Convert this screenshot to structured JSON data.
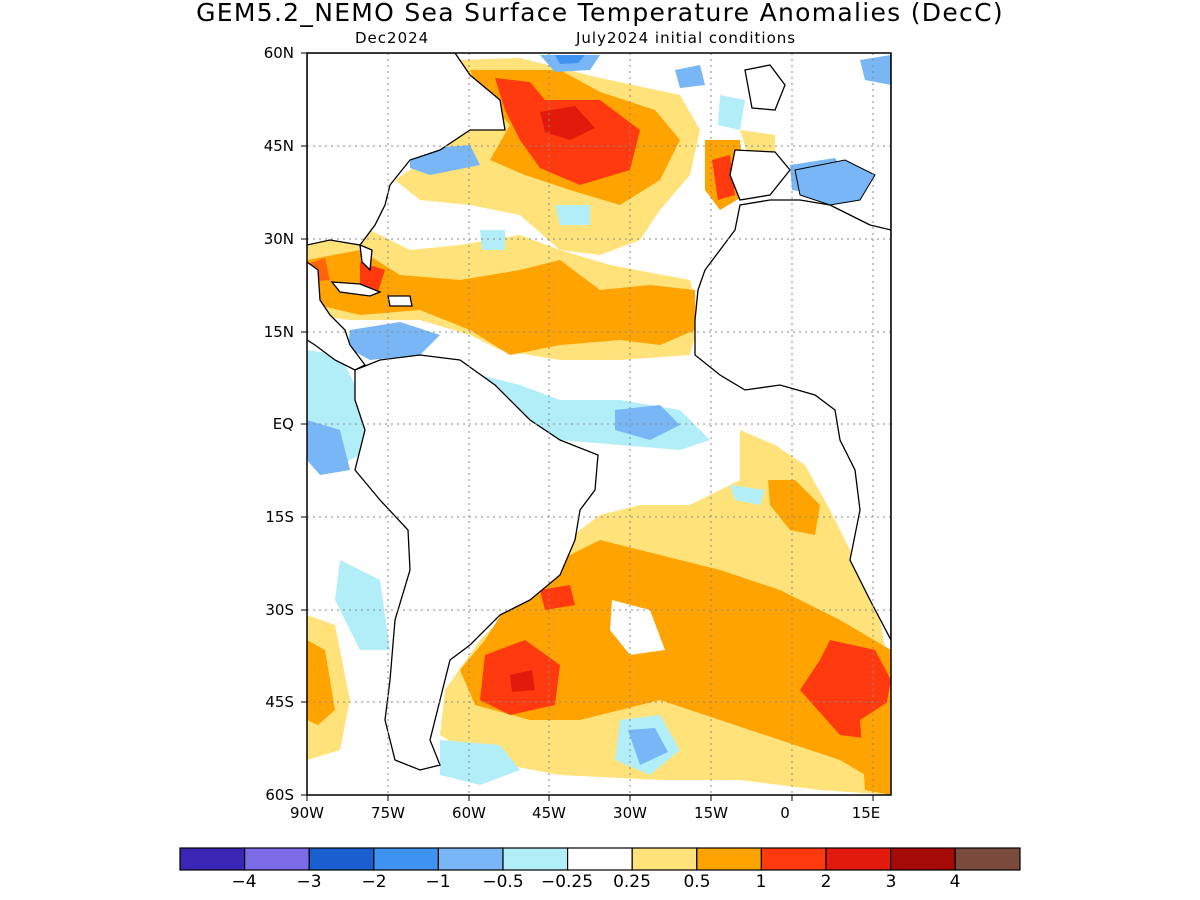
{
  "title": "GEM5.2_NEMO Sea Surface Temperature Anomalies (DecC)",
  "subtitle_left": "Dec2024",
  "subtitle_right": "July2024 initial conditions",
  "axes": {
    "lat_labels": [
      "60N",
      "45N",
      "30N",
      "15N",
      "EQ",
      "15S",
      "30S",
      "45S",
      "60S"
    ],
    "lon_labels": [
      "90W",
      "75W",
      "60W",
      "45W",
      "30W",
      "15W",
      "0",
      "15E"
    ]
  },
  "colorbar": {
    "colors": [
      "#3a26b4",
      "#7b6be6",
      "#1a5fcf",
      "#3d93ef",
      "#78b6f5",
      "#b2eef7",
      "#ffffff",
      "#ffe27a",
      "#ffa300",
      "#ff3a0f",
      "#e11a0c",
      "#a50b06",
      "#7a4a3c"
    ],
    "labels": [
      "−4",
      "−3",
      "−2",
      "−1",
      "−0.5",
      "−0.25",
      "0.25",
      "0.5",
      "1",
      "2",
      "3",
      "4"
    ]
  },
  "map_data": {
    "region": {
      "lon_range": [
        -90,
        18
      ],
      "lat_range": [
        -60,
        60
      ]
    },
    "grid": "dotted",
    "anomalies": [
      {
        "name": "north-atlantic-warm",
        "level": "2"
      },
      {
        "name": "gulf-caribbean-warm",
        "level": "1"
      },
      {
        "name": "south-atlantic-warm",
        "level": "2"
      },
      {
        "name": "equatorial-cool",
        "level": "-1"
      },
      {
        "name": "mediterranean-cool",
        "level": "-1"
      }
    ]
  }
}
